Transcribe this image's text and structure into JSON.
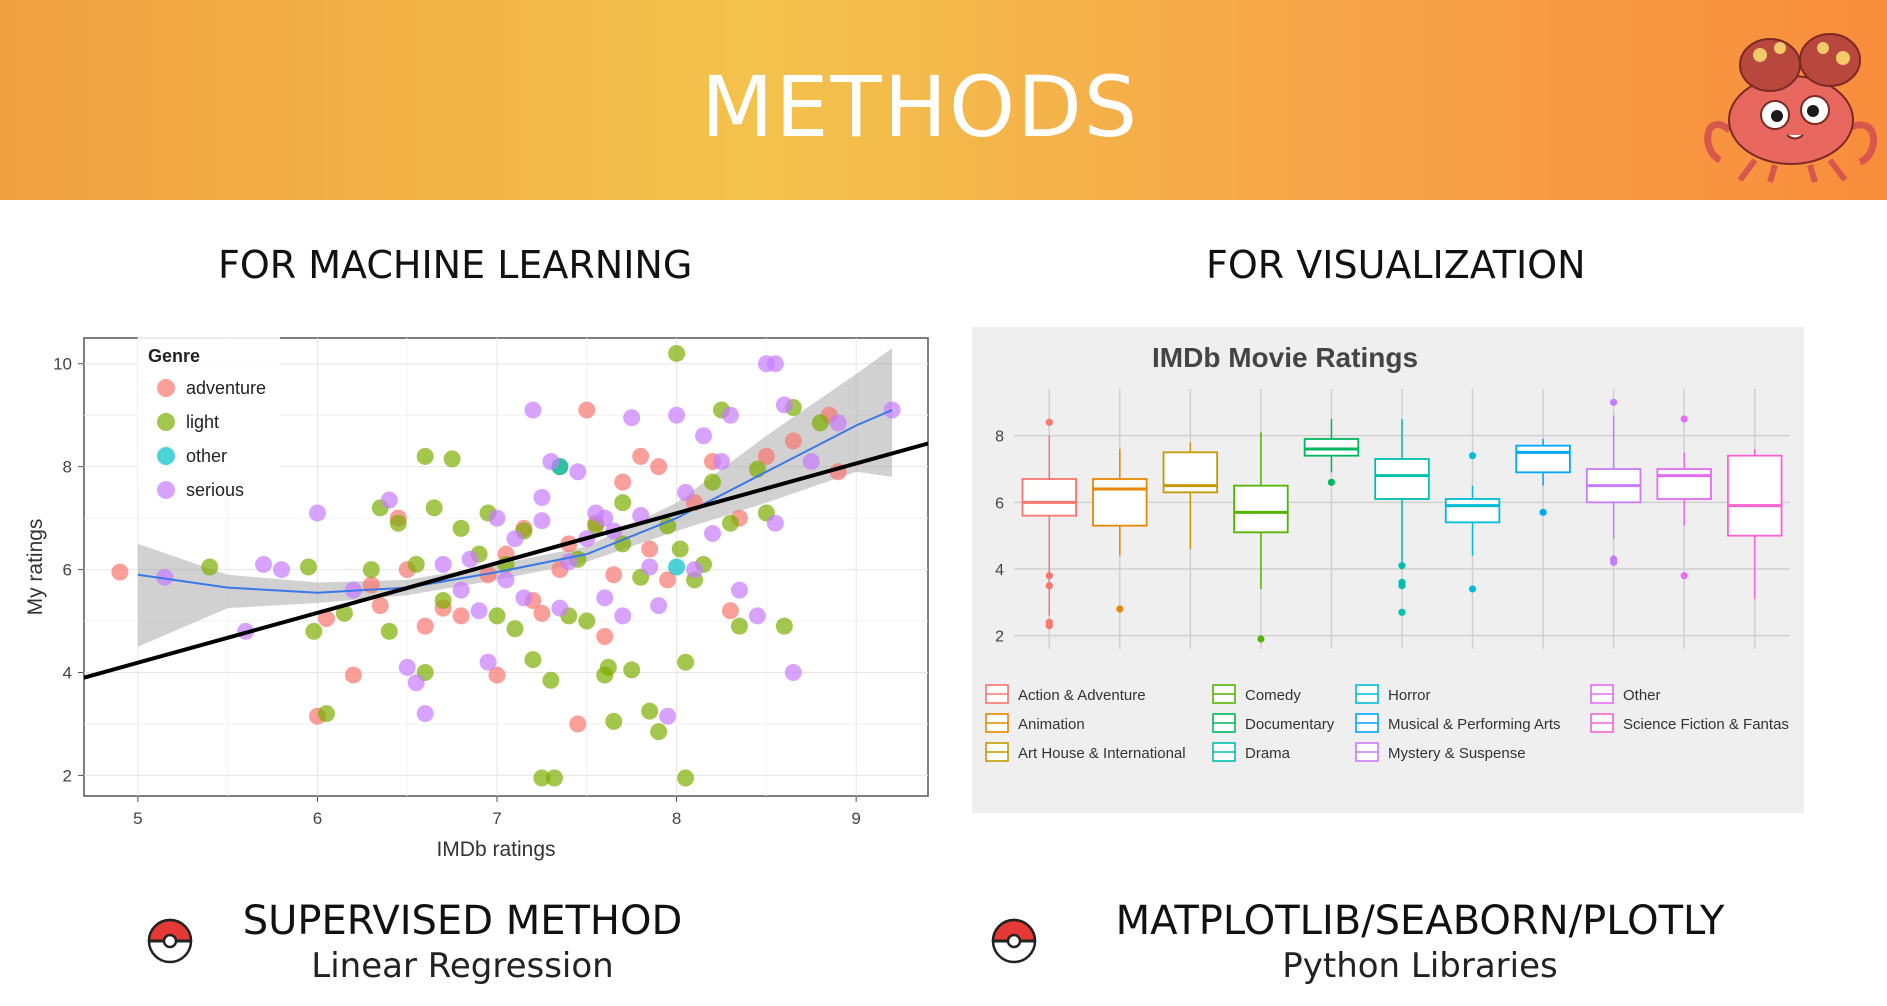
{
  "slide": {
    "title": "METHODS",
    "colors": {
      "banner_left": "#f0a040",
      "banner_mid": "#f3c24c",
      "banner_right": "#f88d3c"
    },
    "left": {
      "heading": "FOR MACHINE LEARNING",
      "method": "SUPERVISED METHOD",
      "detail": "Linear Regression",
      "bullet_icon": "pokeball-icon"
    },
    "right": {
      "heading": "FOR VISUALIZATION",
      "method": "MATPLOTLIB/SEABORN/PLOTLY",
      "detail": "Python Libraries",
      "bullet_icon": "pokeball-icon"
    },
    "mascot_icon": "crab-pokemon-icon"
  },
  "chart_data": [
    {
      "type": "scatter",
      "title": "",
      "xlabel": "IMDb ratings",
      "ylabel": "My ratings",
      "xlim": [
        4.7,
        9.4
      ],
      "ylim": [
        1.6,
        10.5
      ],
      "xticks": [
        5,
        6,
        7,
        8,
        9
      ],
      "yticks": [
        2,
        4,
        6,
        8,
        10
      ],
      "grid": true,
      "legend": {
        "title": "Genre",
        "placement": "top-left"
      },
      "regression_line": {
        "x": [
          4.7,
          9.4
        ],
        "y": [
          3.9,
          8.45
        ],
        "color": "#000000"
      },
      "loess_curve": {
        "x": [
          5.0,
          5.5,
          6.0,
          6.5,
          7.0,
          7.5,
          8.0,
          8.5,
          9.0,
          9.2
        ],
        "y": [
          5.9,
          5.65,
          5.55,
          5.65,
          5.95,
          6.3,
          7.0,
          7.9,
          8.8,
          9.1
        ],
        "upper": [
          6.5,
          5.9,
          5.75,
          5.8,
          6.1,
          6.45,
          7.3,
          8.6,
          9.8,
          10.3
        ],
        "lower": [
          4.5,
          5.25,
          5.35,
          5.5,
          5.8,
          6.15,
          6.75,
          7.3,
          7.9,
          7.8
        ]
      },
      "series": [
        {
          "name": "adventure",
          "color": "#f8766d",
          "points": [
            [
              4.9,
              5.95
            ],
            [
              6.0,
              3.15
            ],
            [
              6.05,
              5.05
            ],
            [
              6.2,
              3.95
            ],
            [
              6.3,
              5.7
            ],
            [
              6.5,
              6.0
            ],
            [
              6.6,
              4.9
            ],
            [
              6.7,
              5.25
            ],
            [
              6.8,
              5.1
            ],
            [
              6.95,
              5.9
            ],
            [
              7.0,
              3.95
            ],
            [
              7.05,
              6.3
            ],
            [
              7.15,
              6.8
            ],
            [
              7.25,
              5.15
            ],
            [
              7.35,
              6.0
            ],
            [
              7.4,
              6.5
            ],
            [
              7.45,
              3.0
            ],
            [
              7.5,
              9.1
            ],
            [
              7.55,
              6.9
            ],
            [
              7.6,
              4.7
            ],
            [
              7.65,
              5.9
            ],
            [
              7.7,
              7.7
            ],
            [
              7.8,
              8.2
            ],
            [
              7.9,
              8.0
            ],
            [
              7.95,
              5.8
            ],
            [
              8.1,
              7.3
            ],
            [
              8.2,
              8.1
            ],
            [
              8.3,
              5.2
            ],
            [
              8.35,
              7.0
            ],
            [
              8.5,
              8.2
            ],
            [
              8.65,
              8.5
            ],
            [
              8.85,
              9.0
            ],
            [
              8.9,
              7.9
            ],
            [
              6.45,
              7.0
            ],
            [
              7.2,
              5.4
            ],
            [
              6.35,
              5.3
            ],
            [
              7.85,
              6.4
            ]
          ]
        },
        {
          "name": "light",
          "color": "#7cae00",
          "points": [
            [
              5.4,
              6.05
            ],
            [
              5.95,
              6.05
            ],
            [
              5.98,
              4.8
            ],
            [
              6.05,
              3.2
            ],
            [
              6.15,
              5.15
            ],
            [
              6.3,
              6.0
            ],
            [
              6.35,
              7.2
            ],
            [
              6.4,
              4.8
            ],
            [
              6.45,
              6.9
            ],
            [
              6.55,
              6.1
            ],
            [
              6.6,
              8.2
            ],
            [
              6.6,
              4.0
            ],
            [
              6.65,
              7.2
            ],
            [
              6.7,
              5.4
            ],
            [
              6.75,
              8.15
            ],
            [
              6.8,
              6.8
            ],
            [
              6.9,
              6.3
            ],
            [
              7.0,
              5.1
            ],
            [
              7.05,
              6.1
            ],
            [
              7.1,
              4.85
            ],
            [
              7.15,
              6.75
            ],
            [
              7.2,
              4.25
            ],
            [
              7.25,
              1.95
            ],
            [
              7.3,
              3.85
            ],
            [
              7.32,
              1.95
            ],
            [
              7.4,
              5.1
            ],
            [
              7.45,
              6.2
            ],
            [
              7.5,
              5.0
            ],
            [
              7.55,
              6.85
            ],
            [
              7.6,
              3.95
            ],
            [
              7.62,
              4.1
            ],
            [
              7.65,
              3.05
            ],
            [
              7.7,
              6.5
            ],
            [
              7.75,
              4.05
            ],
            [
              7.8,
              5.85
            ],
            [
              7.85,
              3.25
            ],
            [
              7.9,
              2.85
            ],
            [
              7.95,
              6.85
            ],
            [
              8.0,
              10.2
            ],
            [
              8.02,
              6.4
            ],
            [
              8.05,
              4.2
            ],
            [
              8.05,
              1.95
            ],
            [
              8.1,
              5.8
            ],
            [
              8.2,
              7.7
            ],
            [
              8.25,
              9.1
            ],
            [
              8.3,
              6.9
            ],
            [
              8.35,
              4.9
            ],
            [
              8.45,
              7.95
            ],
            [
              8.5,
              7.1
            ],
            [
              8.6,
              4.9
            ],
            [
              8.65,
              9.15
            ],
            [
              8.8,
              8.85
            ],
            [
              7.35,
              8.0
            ],
            [
              6.95,
              7.1
            ],
            [
              7.7,
              7.3
            ],
            [
              8.15,
              6.1
            ]
          ]
        },
        {
          "name": "other",
          "color": "#00bfc4",
          "points": [
            [
              7.35,
              8.0
            ],
            [
              8.0,
              6.05
            ]
          ]
        },
        {
          "name": "serious",
          "color": "#c77cff",
          "points": [
            [
              5.15,
              5.85
            ],
            [
              5.6,
              4.8
            ],
            [
              5.7,
              6.1
            ],
            [
              5.8,
              6.0
            ],
            [
              6.0,
              7.1
            ],
            [
              6.2,
              5.6
            ],
            [
              6.4,
              7.35
            ],
            [
              6.5,
              4.1
            ],
            [
              6.55,
              3.8
            ],
            [
              6.6,
              3.2
            ],
            [
              6.7,
              6.1
            ],
            [
              6.8,
              5.6
            ],
            [
              6.9,
              5.2
            ],
            [
              6.95,
              4.2
            ],
            [
              7.0,
              7.0
            ],
            [
              7.05,
              5.8
            ],
            [
              7.15,
              5.45
            ],
            [
              7.2,
              9.1
            ],
            [
              7.25,
              7.4
            ],
            [
              7.3,
              8.1
            ],
            [
              7.35,
              5.25
            ],
            [
              7.4,
              6.15
            ],
            [
              7.45,
              7.9
            ],
            [
              7.5,
              6.6
            ],
            [
              7.55,
              7.1
            ],
            [
              7.6,
              5.45
            ],
            [
              7.65,
              6.75
            ],
            [
              7.7,
              5.1
            ],
            [
              7.75,
              8.95
            ],
            [
              7.8,
              7.05
            ],
            [
              7.85,
              6.05
            ],
            [
              7.9,
              5.3
            ],
            [
              7.95,
              3.15
            ],
            [
              8.0,
              9.0
            ],
            [
              8.05,
              7.5
            ],
            [
              8.1,
              6.0
            ],
            [
              8.15,
              8.6
            ],
            [
              8.2,
              6.7
            ],
            [
              8.3,
              9.0
            ],
            [
              8.35,
              5.6
            ],
            [
              8.45,
              5.1
            ],
            [
              8.5,
              10.0
            ],
            [
              8.55,
              10.0
            ],
            [
              8.6,
              9.2
            ],
            [
              8.65,
              4.0
            ],
            [
              8.55,
              6.9
            ],
            [
              8.75,
              8.1
            ],
            [
              8.9,
              8.85
            ],
            [
              9.2,
              9.1
            ],
            [
              7.25,
              6.95
            ],
            [
              7.6,
              7.0
            ],
            [
              6.85,
              6.2
            ],
            [
              7.1,
              6.6
            ],
            [
              8.25,
              8.1
            ]
          ]
        }
      ]
    },
    {
      "type": "box",
      "title": "IMDb Movie Ratings",
      "xlabel": "",
      "ylabel": "",
      "ylim": [
        1.6,
        9.4
      ],
      "yticks": [
        2,
        4,
        6,
        8
      ],
      "grid": true,
      "legend": {
        "placement": "bottom",
        "columns": 4
      },
      "categories": [
        "Action & Adventure",
        "Animation",
        "Art House & International",
        "Comedy",
        "Documentary",
        "Drama",
        "Horror",
        "Musical & Performing Arts",
        "Mystery & Suspense",
        "Other",
        "Science Fiction & Fantas"
      ],
      "colors": [
        "#f8766d",
        "#e58700",
        "#c49a00",
        "#53b400",
        "#00b65e",
        "#00bfae",
        "#00bcd8",
        "#00a5ff",
        "#c77cff",
        "#e76bf3",
        "#fd61d1"
      ],
      "boxes": [
        {
          "whisker_low": 2.6,
          "q1": 5.6,
          "median": 6.0,
          "q3": 6.7,
          "whisker_high": 8.0,
          "outliers": [
            8.4,
            3.8,
            3.5,
            2.4,
            2.3
          ]
        },
        {
          "whisker_low": 4.4,
          "q1": 5.3,
          "median": 6.4,
          "q3": 6.7,
          "whisker_high": 7.6,
          "outliers": [
            2.8
          ]
        },
        {
          "whisker_low": 4.6,
          "q1": 6.3,
          "median": 6.5,
          "q3": 7.5,
          "whisker_high": 7.8,
          "outliers": []
        },
        {
          "whisker_low": 3.4,
          "q1": 5.1,
          "median": 5.7,
          "q3": 6.5,
          "whisker_high": 8.1,
          "outliers": [
            1.9
          ]
        },
        {
          "whisker_low": 6.9,
          "q1": 7.4,
          "median": 7.6,
          "q3": 7.9,
          "whisker_high": 8.5,
          "outliers": [
            6.6
          ]
        },
        {
          "whisker_low": 4.2,
          "q1": 6.1,
          "median": 6.8,
          "q3": 7.3,
          "whisker_high": 8.5,
          "outliers": [
            4.1,
            3.6,
            3.5,
            2.7
          ]
        },
        {
          "whisker_low": 4.4,
          "q1": 5.4,
          "median": 5.9,
          "q3": 6.1,
          "whisker_high": 6.5,
          "outliers": [
            7.4,
            3.4
          ]
        },
        {
          "whisker_low": 6.5,
          "q1": 6.9,
          "median": 7.5,
          "q3": 7.7,
          "whisker_high": 7.9,
          "outliers": [
            5.7
          ]
        },
        {
          "whisker_low": 4.9,
          "q1": 6.0,
          "median": 6.5,
          "q3": 7.0,
          "whisker_high": 8.6,
          "outliers": [
            9.0,
            4.3,
            4.2
          ]
        },
        {
          "whisker_low": 5.3,
          "q1": 6.1,
          "median": 6.8,
          "q3": 7.0,
          "whisker_high": 7.5,
          "outliers": [
            8.5,
            3.8
          ]
        },
        {
          "whisker_low": 3.1,
          "q1": 5.0,
          "median": 5.9,
          "q3": 7.4,
          "whisker_high": 7.6,
          "outliers": []
        }
      ]
    }
  ]
}
